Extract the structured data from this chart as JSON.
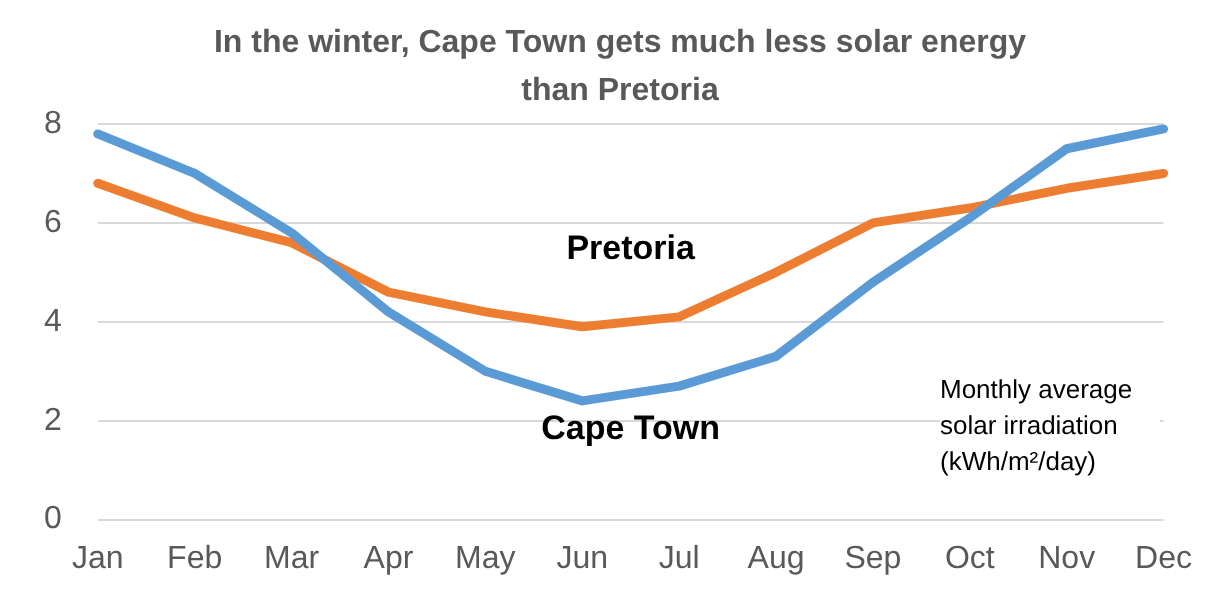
{
  "chart_data": {
    "type": "line",
    "title": "In the winter, Cape Town gets much less solar energy than Pretoria",
    "categories": [
      "Jan",
      "Feb",
      "Mar",
      "Apr",
      "May",
      "Jun",
      "Jul",
      "Aug",
      "Sep",
      "Oct",
      "Nov",
      "Dec"
    ],
    "series": [
      {
        "name": "Cape Town",
        "color": "#5b9bd5",
        "values": [
          7.8,
          7.0,
          5.8,
          4.2,
          3.0,
          2.4,
          2.7,
          3.3,
          4.8,
          6.1,
          7.5,
          7.9
        ]
      },
      {
        "name": "Pretoria",
        "color": "#ed7d31",
        "values": [
          6.8,
          6.1,
          5.6,
          4.6,
          4.2,
          3.9,
          4.1,
          5.0,
          6.0,
          6.3,
          6.7,
          7.0
        ]
      }
    ],
    "ylim": [
      0,
      8
    ],
    "yticks": [
      0,
      2,
      4,
      6,
      8
    ],
    "grid": "y",
    "legend": false,
    "marker": "none",
    "line_style": "solid",
    "annotations": [
      "Monthly average solar irradiation (kWh/m²/day)"
    ]
  }
}
